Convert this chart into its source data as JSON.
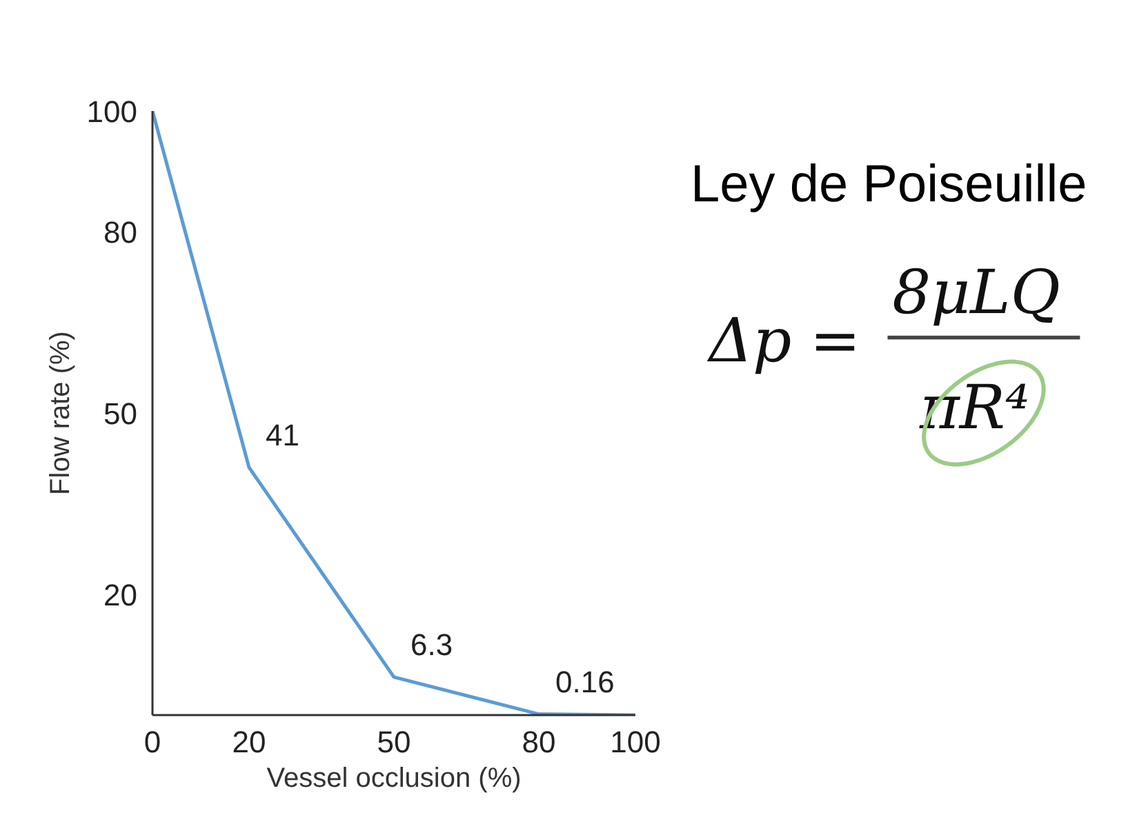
{
  "chart_data": {
    "type": "line",
    "title": "Ley de Poiseuille",
    "xlabel": "Vessel occlusion (%)",
    "ylabel": "Flow rate (%)",
    "x": [
      0,
      20,
      50,
      80,
      100
    ],
    "series": [
      {
        "color": "#5b9bd5",
        "values": [
          100,
          41,
          6.3,
          0.16,
          0
        ],
        "value_labels": [
          null,
          "41",
          "6.3",
          "0.16",
          null
        ]
      }
    ],
    "xlim": [
      0,
      100
    ],
    "xticks": [
      0,
      20,
      50,
      80,
      100
    ],
    "ylim": [
      0,
      100
    ],
    "yticks": [
      20,
      50,
      80,
      100
    ],
    "annotations": [
      "Δp",
      "=",
      "8μLQ",
      "πR⁴"
    ],
    "grid": false,
    "marker": "none",
    "line_style": "solid"
  }
}
